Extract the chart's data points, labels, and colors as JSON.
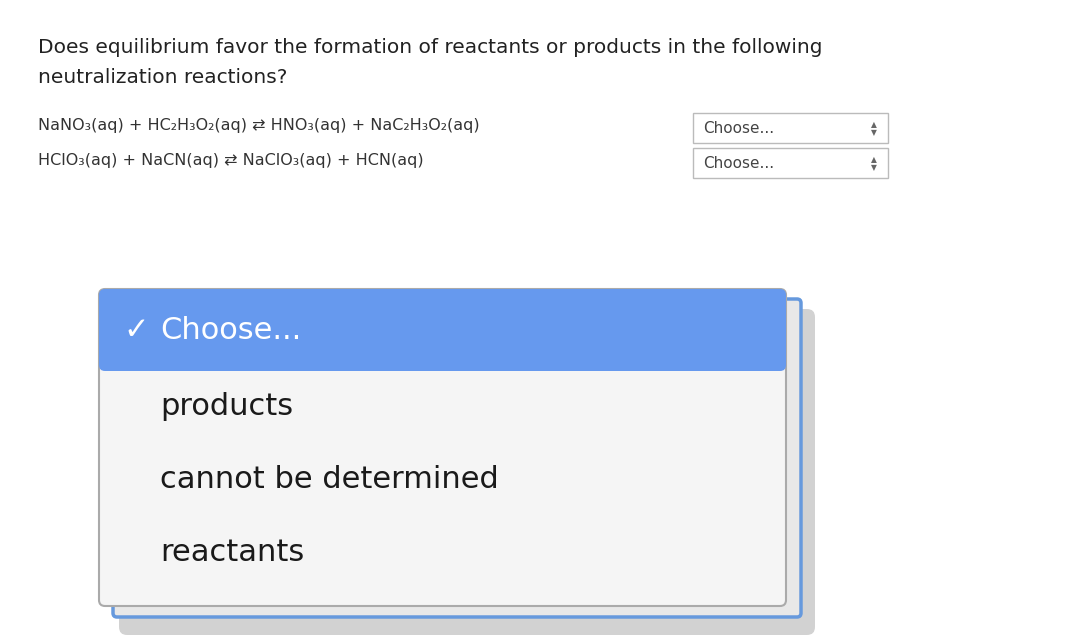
{
  "bg_color": "#ffffff",
  "title_line1": "Does equilibrium favor the formation of reactants or products in the following",
  "title_line2": "neutralization reactions?",
  "reaction1": "NaNO₃(aq) + HC₂H₃O₂(aq) ⇄ HNO₃(aq) + NaC₂H₃O₂(aq)",
  "reaction2": "HClO₃(aq) + NaCN(aq) ⇄ NaClO₃(aq) + HCN(aq)",
  "dropdown_label": "Choose...",
  "dropdown_bg": "#ffffff",
  "dropdown_border": "#bbbbbb",
  "popup_border_color": "#6699dd",
  "popup_shadow_color": "#c8c8c8",
  "popup_bg": "#efefef",
  "popup_inner_bg": "#f5f5f5",
  "selected_bg": "#6699ee",
  "selected_text": "Choose...",
  "selected_checkmark": "✓",
  "menu_items": [
    "products",
    "cannot be determined",
    "reactants"
  ],
  "title_fontsize": 14.5,
  "reaction_fontsize": 11.5,
  "dropdown_fontsize": 11,
  "popup_item_fontsize": 22,
  "selected_fontsize": 22
}
